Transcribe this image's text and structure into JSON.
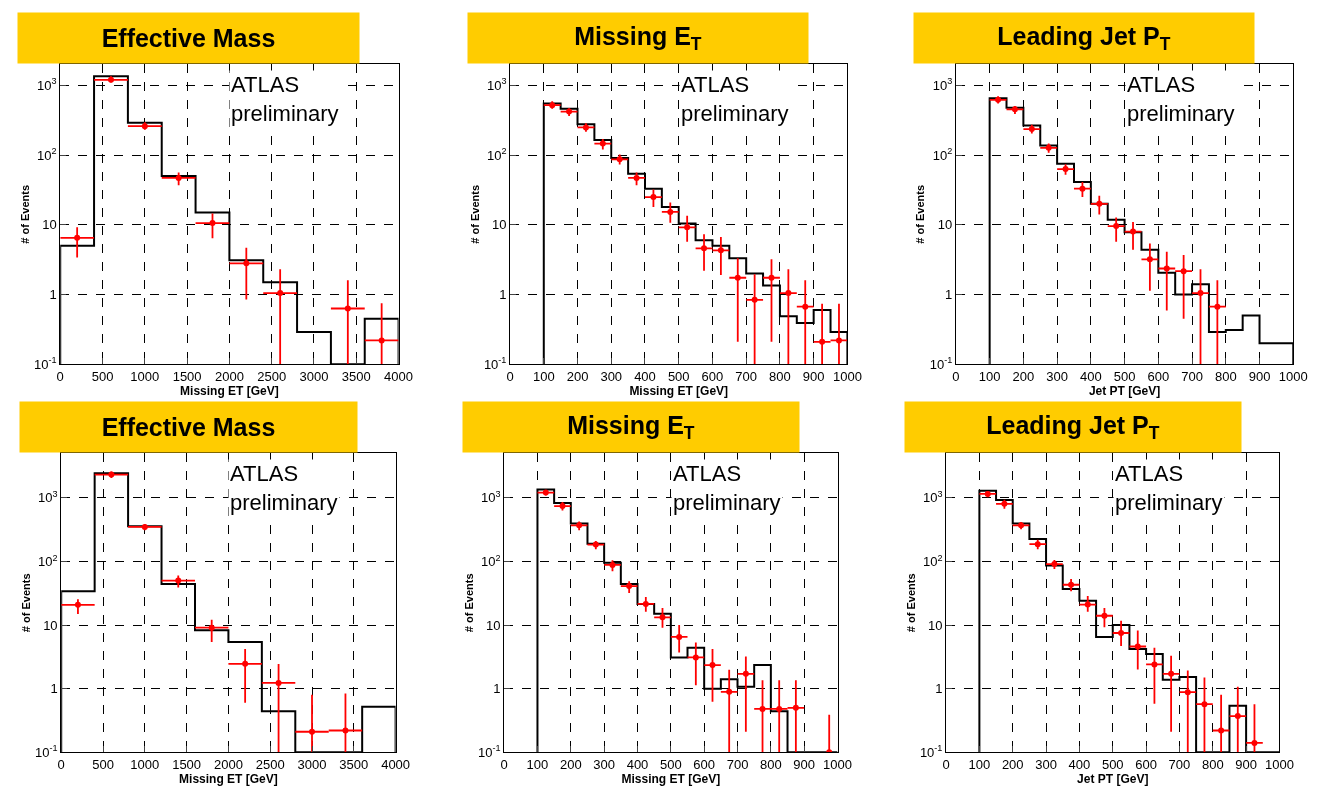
{
  "chart_data": [
    {
      "type": "histogram",
      "title": "Effective Mass",
      "xlabel": "Missing ET [GeV]",
      "ylabel": "# of Events",
      "xlim": [
        0,
        4000
      ],
      "xticks": [
        0,
        500,
        1000,
        1500,
        2000,
        2500,
        3000,
        3500,
        4000
      ],
      "ylim": [
        0.1,
        2000
      ],
      "yticks": [
        {
          "value": 0.1,
          "label": "10$^{-1}$"
        },
        1,
        10,
        {
          "value": 100,
          "label": "10$^{2}$"
        },
        {
          "value": 1000,
          "label": "10$^{3}$"
        }
      ],
      "log": "y",
      "grid": true,
      "annotations": [
        "ATLAS\npreliminary"
      ],
      "series": [
        {
          "type": "histogram",
          "color": "#000000",
          "bins": [
            0,
            400,
            800,
            1200,
            1600,
            2000,
            2400,
            2800,
            3200,
            3600,
            4000
          ],
          "values": [
            5.0,
            1350,
            290,
            50,
            15,
            3.1,
            1.5,
            0.29,
            null,
            0.45
          ]
        },
        {
          "type": "scatter",
          "color": "#ff0000",
          "x": [
            200,
            600,
            1000,
            1400,
            1800,
            2200,
            2600,
            3400,
            3800
          ],
          "values": [
            6.5,
            1200,
            260,
            47,
            10.6,
            2.8,
            1.05,
            0.63,
            0.22
          ],
          "xerrors": [
            200,
            200,
            200,
            200,
            200,
            200,
            200,
            200,
            200
          ],
          "errors": [
            [
              3.4,
              9.2
            ],
            [
              1100,
              1350
            ],
            [
              230,
              295
            ],
            [
              37,
              56
            ],
            [
              6.4,
              14.5
            ],
            [
              0.85,
              4.7
            ],
            [
              0.1,
              2.3
            ],
            [
              0.1,
              1.6
            ],
            [
              0.1,
              0.75
            ]
          ]
        }
      ]
    },
    {
      "type": "histogram",
      "title": "Missing E$_{T}$",
      "xlabel": "Missing ET [GeV]",
      "ylabel": "# of Events",
      "xlim": [
        0,
        1000
      ],
      "xticks": [
        0,
        100,
        200,
        300,
        400,
        500,
        600,
        700,
        800,
        900,
        1000
      ],
      "ylim": [
        0.1,
        2000
      ],
      "yticks": [
        {
          "value": 0.1,
          "label": "10$^{-1}$"
        },
        1,
        10,
        {
          "value": 100,
          "label": "10$^{2}$"
        },
        {
          "value": 1000,
          "label": "10$^{3}$"
        }
      ],
      "log": "y",
      "grid": true,
      "annotations": [
        "ATLAS\npreliminary"
      ],
      "series": [
        {
          "type": "histogram",
          "color": "#000000",
          "bins": [
            100,
            150,
            200,
            250,
            300,
            350,
            400,
            450,
            500,
            550,
            600,
            650,
            700,
            750,
            800,
            850,
            900,
            950,
            1000
          ],
          "values": [
            550,
            460,
            277,
            165,
            91,
            54,
            33,
            18,
            10.4,
            6.0,
            5.0,
            3.3,
            2.0,
            1.35,
            0.49,
            0.39,
            0.6,
            0.29
          ]
        },
        {
          "type": "scatter",
          "color": "#ff0000",
          "x": [
            125,
            175,
            225,
            275,
            325,
            375,
            425,
            475,
            525,
            575,
            625,
            675,
            725,
            775,
            825,
            875,
            925,
            975
          ],
          "values": [
            520,
            420,
            249,
            146,
            87,
            47,
            25,
            15.3,
            9.2,
            4.6,
            4.3,
            1.74,
            0.84,
            1.74,
            1.05,
            0.67,
            0.21,
            0.22
          ],
          "xerrors": [
            25,
            25,
            25,
            25,
            25,
            25,
            25,
            25,
            25,
            25,
            25,
            25,
            25,
            25,
            25,
            25,
            25,
            25
          ],
          "errors": [
            [
              460,
              590
            ],
            [
              364,
              468
            ],
            [
              216,
              287
            ],
            [
              120,
              170
            ],
            [
              73,
              102
            ],
            [
              37,
              56
            ],
            [
              18,
              32
            ],
            [
              10.7,
              20.8
            ],
            [
              5.7,
              13.5
            ],
            [
              2.2,
              7.3
            ],
            [
              1.9,
              6.7
            ],
            [
              0.21,
              3.3
            ],
            [
              0.1,
              1.95
            ],
            [
              0.21,
              3.2
            ],
            [
              0.1,
              2.3
            ],
            [
              0.1,
              1.6
            ],
            [
              0.1,
              0.74
            ],
            [
              0.1,
              0.74
            ]
          ]
        }
      ]
    },
    {
      "type": "histogram",
      "title": "Leading Jet P$_{T}$",
      "xlabel": "Jet PT [GeV]",
      "ylabel": "# of Events",
      "xlim": [
        0,
        1000
      ],
      "xticks": [
        0,
        100,
        200,
        300,
        400,
        500,
        600,
        700,
        800,
        900,
        1000
      ],
      "ylim": [
        0.1,
        2000
      ],
      "yticks": [
        {
          "value": 0.1,
          "label": "10$^{-1}$"
        },
        1,
        10,
        {
          "value": 100,
          "label": "10$^{2}$"
        },
        {
          "value": 1000,
          "label": "10$^{3}$"
        }
      ],
      "log": "y",
      "grid": true,
      "annotations": [
        "ATLAS\npreliminary"
      ],
      "series": [
        {
          "type": "histogram",
          "color": "#000000",
          "bins": [
            100,
            150,
            200,
            250,
            300,
            350,
            400,
            450,
            500,
            550,
            600,
            650,
            700,
            750,
            800,
            850,
            900,
            950,
            1000
          ],
          "values": [
            655,
            478,
            266,
            137,
            75,
            41,
            20,
            11.8,
            7.8,
            4.4,
            2.05,
            1.0,
            1.4,
            0.29,
            0.31,
            0.5,
            0.2,
            0.2
          ]
        },
        {
          "type": "scatter",
          "color": "#ff0000",
          "x": [
            125,
            175,
            225,
            275,
            325,
            375,
            425,
            475,
            525,
            575,
            625,
            675,
            725,
            775
          ],
          "values": [
            620,
            453,
            236,
            127,
            63,
            33,
            20,
            9.6,
            8.0,
            3.2,
            2.36,
            2.16,
            1.05,
            0.67
          ],
          "xerrors": [
            25,
            25,
            25,
            25,
            25,
            25,
            25,
            25,
            25,
            25,
            25,
            25,
            25,
            25
          ],
          "errors": [
            [
              551,
              699
            ],
            [
              389,
              505
            ],
            [
              203,
              272
            ],
            [
              108,
              146
            ],
            [
              52,
              74
            ],
            [
              25,
              41
            ],
            [
              14,
              26
            ],
            [
              5.7,
              12.7
            ],
            [
              4.4,
              11
            ],
            [
              1.13,
              5.4
            ],
            [
              0.59,
              4.1
            ],
            [
              0.45,
              3.7
            ],
            [
              0.1,
              2.3
            ],
            [
              0.1,
              1.6
            ]
          ]
        }
      ]
    },
    {
      "type": "histogram",
      "title": "Effective Mass",
      "xlabel": "Missing ET [GeV]",
      "ylabel": "# of Events",
      "xlim": [
        0,
        4000
      ],
      "xticks": [
        0,
        500,
        1000,
        1500,
        2000,
        2500,
        3000,
        3500,
        4000
      ],
      "ylim": [
        0.1,
        5000
      ],
      "yticks": [
        {
          "value": 0.1,
          "label": "10$^{-1}$"
        },
        1,
        10,
        {
          "value": 100,
          "label": "10$^{2}$"
        },
        {
          "value": 1000,
          "label": "10$^{3}$"
        }
      ],
      "log": "y",
      "grid": true,
      "annotations": [
        "ATLAS\npreliminary"
      ],
      "series": [
        {
          "type": "histogram",
          "color": "#000000",
          "bins": [
            0,
            400,
            800,
            1200,
            1600,
            2000,
            2400,
            2800,
            3200,
            3600,
            4000
          ],
          "values": [
            34,
            2430,
            356,
            44,
            8.3,
            5.4,
            0.44,
            null,
            null,
            0.52
          ]
        },
        {
          "type": "scatter",
          "color": "#ff0000",
          "x": [
            200,
            600,
            1000,
            1400,
            1800,
            2200,
            2600,
            3000,
            3400
          ],
          "values": [
            20.8,
            2320,
            348,
            50,
            9.1,
            2.46,
            1.23,
            0.21,
            0.22
          ],
          "xerrors": [
            200,
            200,
            200,
            200,
            200,
            200,
            200,
            200,
            200
          ],
          "errors": [
            [
              14.9,
              25.5
            ],
            [
              2050,
              2580
            ],
            [
              309,
              388
            ],
            [
              39,
              60
            ],
            [
              5.4,
              12.1
            ],
            [
              0.6,
              4.2
            ],
            [
              0.1,
              2.45
            ],
            [
              0.1,
              0.8
            ],
            [
              0.1,
              0.84
            ]
          ]
        }
      ]
    },
    {
      "type": "histogram",
      "title": "Missing E$_{T}$",
      "xlabel": "Missing ET [GeV]",
      "ylabel": "# of Events",
      "xlim": [
        0,
        1000
      ],
      "xticks": [
        0,
        100,
        200,
        300,
        400,
        500,
        600,
        700,
        800,
        900,
        1000
      ],
      "ylim": [
        0.1,
        5000
      ],
      "yticks": [
        {
          "value": 0.1,
          "label": "10$^{-1}$"
        },
        1,
        10,
        {
          "value": 100,
          "label": "10$^{2}$"
        },
        {
          "value": 1000,
          "label": "10$^{3}$"
        }
      ],
      "log": "y",
      "grid": true,
      "annotations": [
        "ATLAS\npreliminary"
      ],
      "series": [
        {
          "type": "histogram",
          "color": "#000000",
          "bins": [
            100,
            150,
            200,
            250,
            300,
            350,
            400,
            450,
            500,
            550,
            600,
            650,
            700,
            750,
            800,
            850,
            900,
            950,
            1000
          ],
          "values": [
            1350,
            826,
            393,
            189,
            95,
            44,
            21.5,
            15,
            3.1,
            4.4,
            1.0,
            1.4,
            1.07,
            2.35,
            0.44,
            null,
            null,
            null
          ]
        },
        {
          "type": "scatter",
          "color": "#ff0000",
          "x": [
            125,
            175,
            225,
            275,
            325,
            375,
            425,
            475,
            525,
            575,
            625,
            675,
            725,
            775,
            825,
            875,
            975
          ],
          "values": [
            1210,
            740,
            370,
            184,
            88,
            41,
            21.5,
            13.2,
            6.5,
            3.1,
            2.35,
            0.89,
            1.71,
            0.48,
            0.48,
            0.5,
            0.1
          ],
          "xerrors": [
            25,
            25,
            25,
            25,
            25,
            25,
            25,
            25,
            25,
            25,
            25,
            25,
            25,
            25,
            25,
            25,
            null
          ],
          "errors": [
            [
              1090,
              1330
            ],
            [
              634,
              856
            ],
            [
              309,
              426
            ],
            [
              155,
              210
            ],
            [
              70,
              104
            ],
            [
              32,
              49
            ],
            [
              16.2,
              27.5
            ],
            [
              9.1,
              18.6
            ],
            [
              3.7,
              10
            ],
            [
              1.13,
              5.3
            ],
            [
              0.62,
              4.2
            ],
            [
              0.1,
              1.98
            ],
            [
              0.21,
              3.2
            ],
            [
              0.1,
              1.35
            ],
            [
              0.1,
              1.35
            ],
            [
              0.1,
              1.35
            ],
            [
              0.1,
              0.39
            ]
          ]
        }
      ]
    },
    {
      "type": "histogram",
      "title": "Leading Jet P$_{T}$",
      "xlabel": "Jet PT [GeV]",
      "ylabel": "# of Events",
      "xlim": [
        0,
        1000
      ],
      "xticks": [
        0,
        100,
        200,
        300,
        400,
        500,
        600,
        700,
        800,
        900,
        1000
      ],
      "ylim": [
        0.1,
        5000
      ],
      "yticks": [
        {
          "value": 0.1,
          "label": "10$^{-1}$"
        },
        1,
        10,
        {
          "value": 100,
          "label": "10$^{2}$"
        },
        {
          "value": 1000,
          "label": "10$^{3}$"
        }
      ],
      "log": "y",
      "grid": true,
      "annotations": [
        "ATLAS\npreliminary"
      ],
      "series": [
        {
          "type": "histogram",
          "color": "#000000",
          "bins": [
            100,
            150,
            200,
            250,
            300,
            350,
            400,
            450,
            500,
            550,
            600,
            650,
            700,
            750,
            800,
            850,
            900,
            950,
            1000
          ],
          "values": [
            1290,
            920,
            393,
            226,
            86,
            37,
            24,
            6.5,
            10,
            4.2,
            3.5,
            1.38,
            1.52,
            null,
            null,
            0.54,
            null,
            null
          ]
        },
        {
          "type": "scatter",
          "color": "#ff0000",
          "x": [
            125,
            175,
            225,
            275,
            325,
            375,
            425,
            475,
            525,
            575,
            625,
            675,
            725,
            775,
            825,
            875,
            925
          ],
          "values": [
            1150,
            805,
            370,
            187,
            91,
            43,
            21,
            14,
            7.5,
            4.6,
            2.4,
            1.71,
            0.88,
            0.57,
            0.22,
            0.37,
            0.14
          ],
          "xerrors": [
            25,
            25,
            25,
            25,
            25,
            25,
            25,
            25,
            25,
            25,
            25,
            25,
            25,
            25,
            25,
            25,
            25
          ],
          "errors": [
            [
              1020,
              1270
            ],
            [
              674,
              930
            ],
            [
              320,
              418
            ],
            [
              155,
              220
            ],
            [
              76,
              105
            ],
            [
              34,
              53
            ],
            [
              16.2,
              28.5
            ],
            [
              9.2,
              18.6
            ],
            [
              4.7,
              11.7
            ],
            [
              2.0,
              8.2
            ],
            [
              0.58,
              4.4
            ],
            [
              0.21,
              3.3
            ],
            [
              0.1,
              1.93
            ],
            [
              0.1,
              1.5
            ],
            [
              0.1,
              0.8
            ],
            [
              0.1,
              1.07
            ],
            [
              0.1,
              0.57
            ]
          ]
        }
      ]
    }
  ]
}
